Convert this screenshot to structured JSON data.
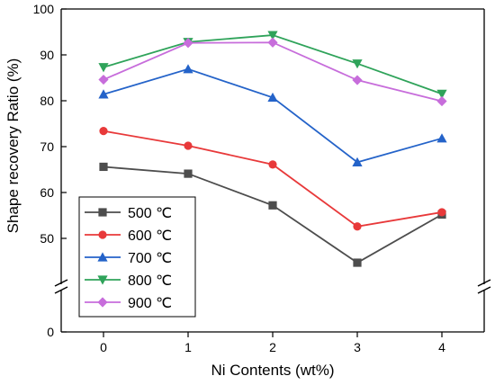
{
  "chart_data": {
    "type": "line",
    "xlabel": "Ni Contents (wt%)",
    "ylabel": "Shape recovery Ratio (%)",
    "x": [
      0,
      1,
      2,
      3,
      4
    ],
    "x_ticks": [
      "0",
      "1",
      "2",
      "3",
      "4"
    ],
    "xlim": [
      -0.5,
      4.5
    ],
    "y_ticks_upper": [
      "50",
      "60",
      "70",
      "80",
      "90",
      "100"
    ],
    "y_ticks_lower": [
      "0"
    ],
    "ylim_upper": [
      40,
      100
    ],
    "ylim_lower": [
      0,
      10
    ],
    "axis_break": true,
    "grid": false,
    "legend_position": "bottom-left",
    "series": [
      {
        "name": "500 ℃",
        "color": "#4d4d4d",
        "marker": "square",
        "values": [
          65.6,
          64.1,
          57.2,
          44.7,
          55.2
        ]
      },
      {
        "name": "600 ℃",
        "color": "#e8393a",
        "marker": "circle",
        "values": [
          73.4,
          70.2,
          66.1,
          52.6,
          55.7
        ]
      },
      {
        "name": "700 ℃",
        "color": "#2463c9",
        "marker": "triangle-up",
        "values": [
          81.4,
          86.9,
          80.7,
          66.6,
          71.8
        ]
      },
      {
        "name": "800 ℃",
        "color": "#2fa35a",
        "marker": "triangle-down",
        "values": [
          87.3,
          92.8,
          94.3,
          88.1,
          81.5
        ]
      },
      {
        "name": "900 ℃",
        "color": "#c76ddb",
        "marker": "diamond",
        "values": [
          84.6,
          92.6,
          92.7,
          84.5,
          79.9
        ]
      }
    ]
  }
}
